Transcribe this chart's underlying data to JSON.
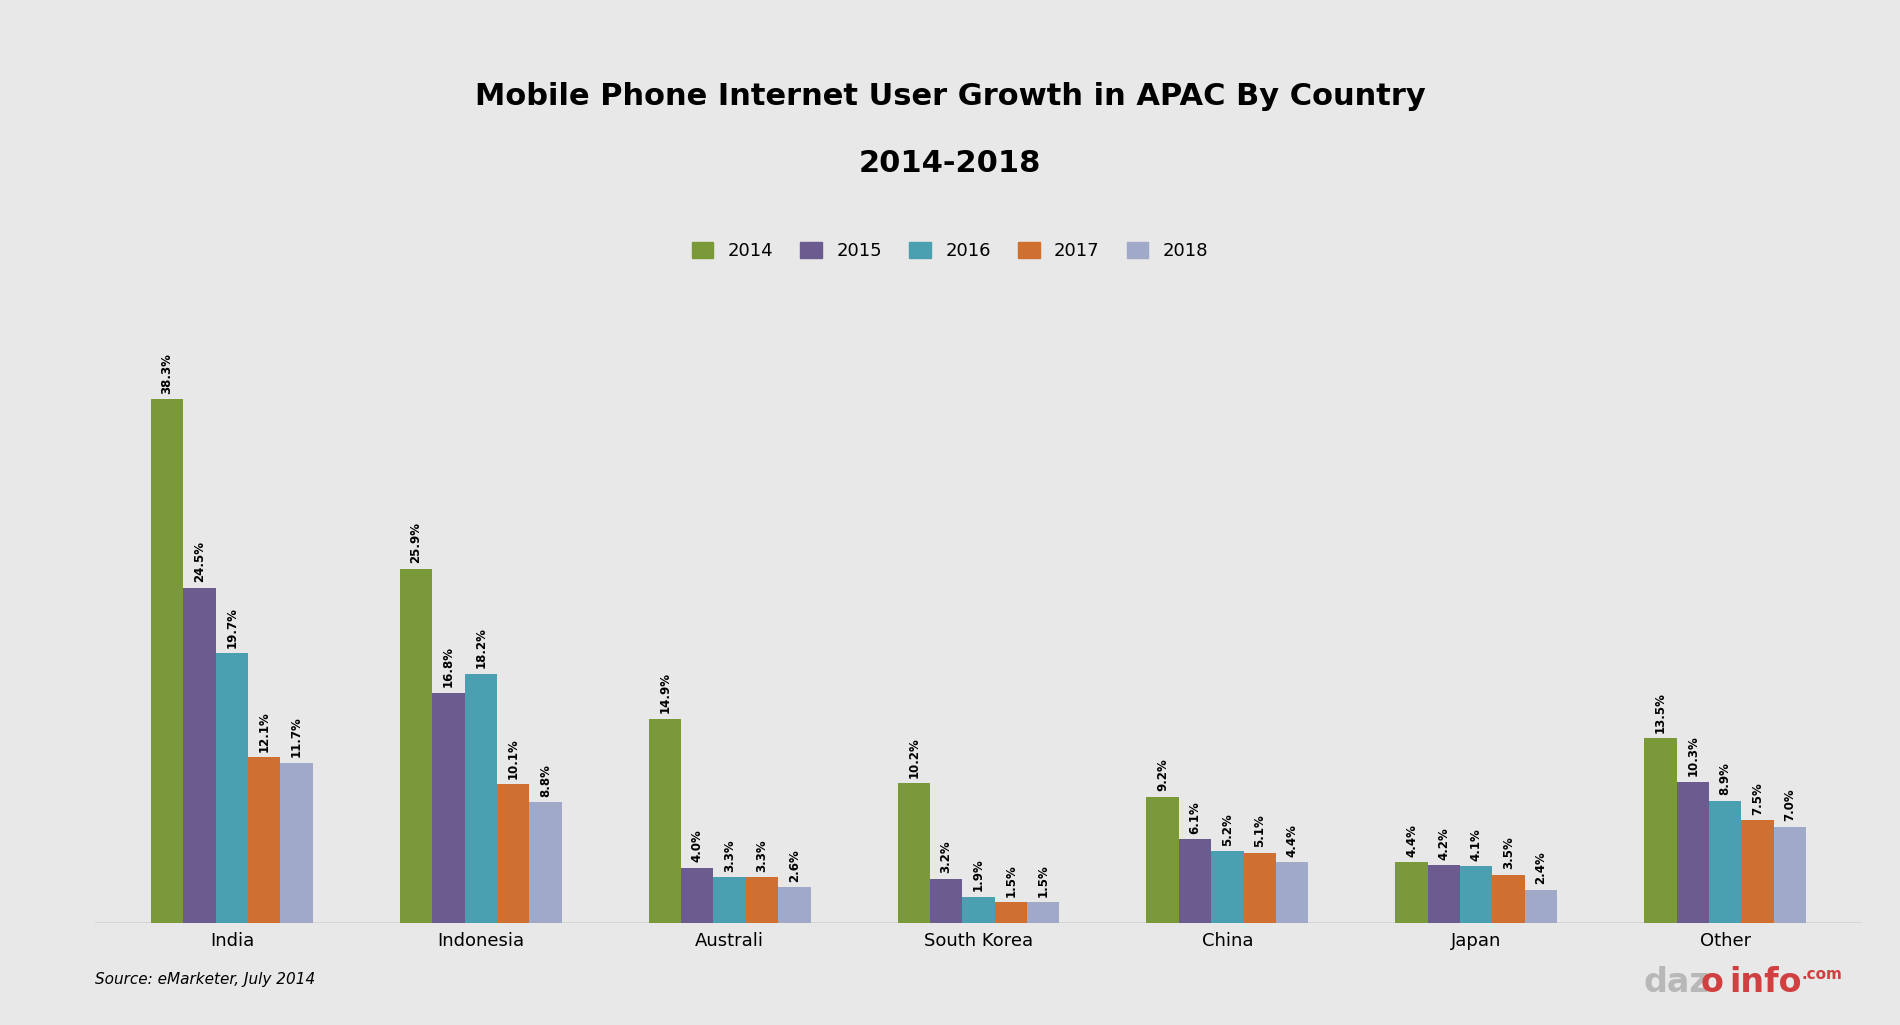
{
  "title": "Mobile Phone Internet User Growth in APAC By Country\n2014-2018",
  "categories": [
    "India",
    "Indonesia",
    "Australi",
    "South Korea",
    "China",
    "Japan",
    "Other"
  ],
  "years": [
    "2014",
    "2015",
    "2016",
    "2017",
    "2018"
  ],
  "values": {
    "2014": [
      38.3,
      25.9,
      14.9,
      10.2,
      9.2,
      4.4,
      13.5
    ],
    "2015": [
      24.5,
      16.8,
      4.0,
      3.2,
      6.1,
      4.2,
      10.3
    ],
    "2016": [
      19.7,
      18.2,
      3.3,
      1.9,
      5.2,
      4.1,
      8.9
    ],
    "2017": [
      12.1,
      10.1,
      3.3,
      1.5,
      5.1,
      3.5,
      7.5
    ],
    "2018": [
      11.7,
      8.8,
      2.6,
      1.5,
      4.4,
      2.4,
      7.0
    ]
  },
  "colors": {
    "2014": "#7a9a3a",
    "2015": "#6b5b8e",
    "2016": "#4aa0b0",
    "2017": "#d07030",
    "2018": "#a0aac8"
  },
  "bar_width": 0.13,
  "source": "Source: eMarketer, July 2014",
  "background_color": "#e8e8e8",
  "ylim": [
    0,
    45
  ]
}
